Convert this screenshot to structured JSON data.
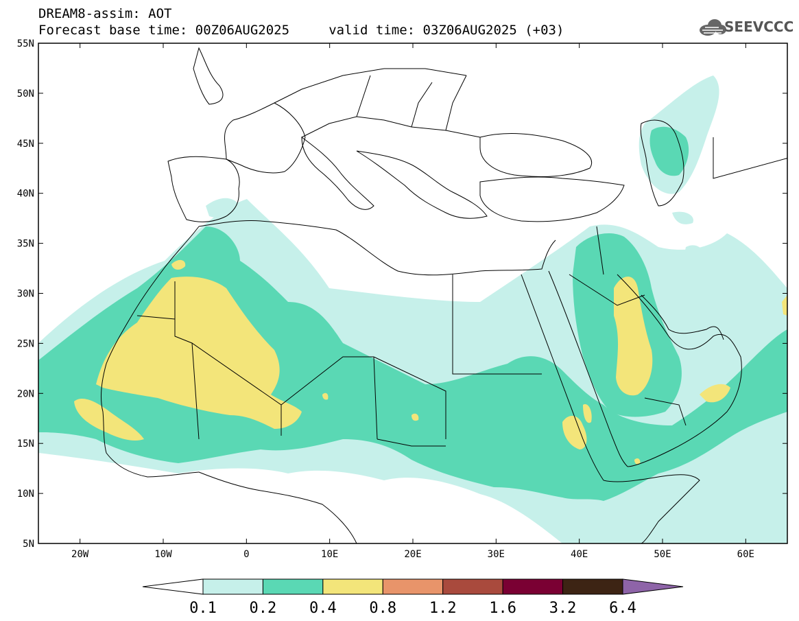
{
  "header": {
    "line1": "DREAM8-assim: AOT",
    "line2": "Forecast base time: 00Z06AUG2025     valid time: 03Z06AUG2025 (+03)"
  },
  "logo": {
    "text": "SEEVCCC",
    "icon": "cloud-logo-icon"
  },
  "map": {
    "lon_range": [
      -25,
      65
    ],
    "lat_range": [
      5,
      55
    ],
    "lat_labels": [
      "55N",
      "50N",
      "45N",
      "40N",
      "35N",
      "30N",
      "25N",
      "20N",
      "15N",
      "10N",
      "5N"
    ],
    "lat_values": [
      55,
      50,
      45,
      40,
      35,
      30,
      25,
      20,
      15,
      10,
      5
    ],
    "lon_labels": [
      "20W",
      "10W",
      "0",
      "10E",
      "20E",
      "30E",
      "40E",
      "50E",
      "60E"
    ],
    "lon_values": [
      -20,
      -10,
      0,
      10,
      20,
      30,
      40,
      50,
      60
    ]
  },
  "colorbar": {
    "labels": [
      "0.1",
      "0.2",
      "0.4",
      "0.8",
      "1.2",
      "1.6",
      "3.2",
      "6.4"
    ],
    "colors": [
      "#ffffff",
      "#c6f0ea",
      "#5ad8b4",
      "#f3e57a",
      "#e8946a",
      "#a94a3d",
      "#7a0033",
      "#3d2414",
      "#8e64a8"
    ]
  },
  "colors": {
    "aot_0_1": "#c6f0ea",
    "aot_0_2": "#5ad8b4",
    "aot_0_4": "#f3e57a",
    "border": "#000000"
  }
}
